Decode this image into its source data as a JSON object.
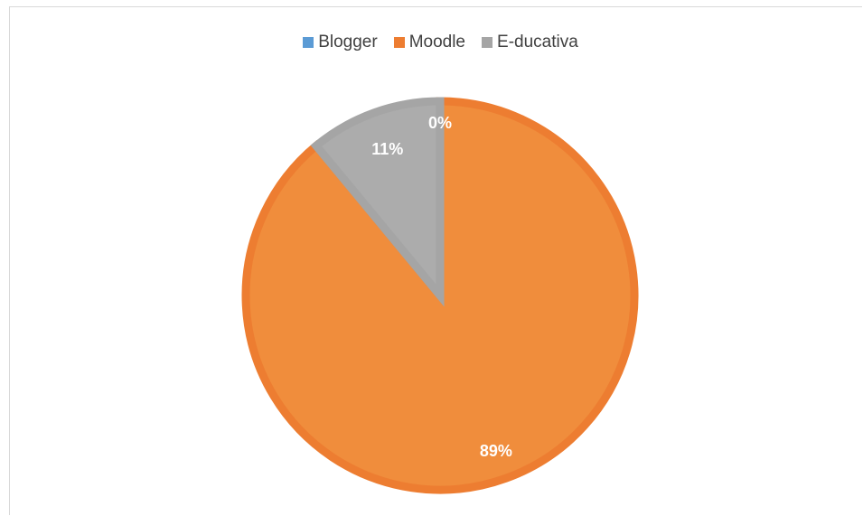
{
  "chart_data": {
    "type": "pie",
    "categories": [
      "Blogger",
      "Moodle",
      "E-ducativa"
    ],
    "values": [
      0,
      89,
      11
    ],
    "labels": [
      "0%",
      "89%",
      "11%"
    ],
    "colors": [
      "#5b9bd5",
      "#ed7d31",
      "#a5a5a5"
    ],
    "fill_colors": [
      "#5b9bd5",
      "#f08d3c",
      "#acacac"
    ],
    "legend_position": "top",
    "title": ""
  }
}
